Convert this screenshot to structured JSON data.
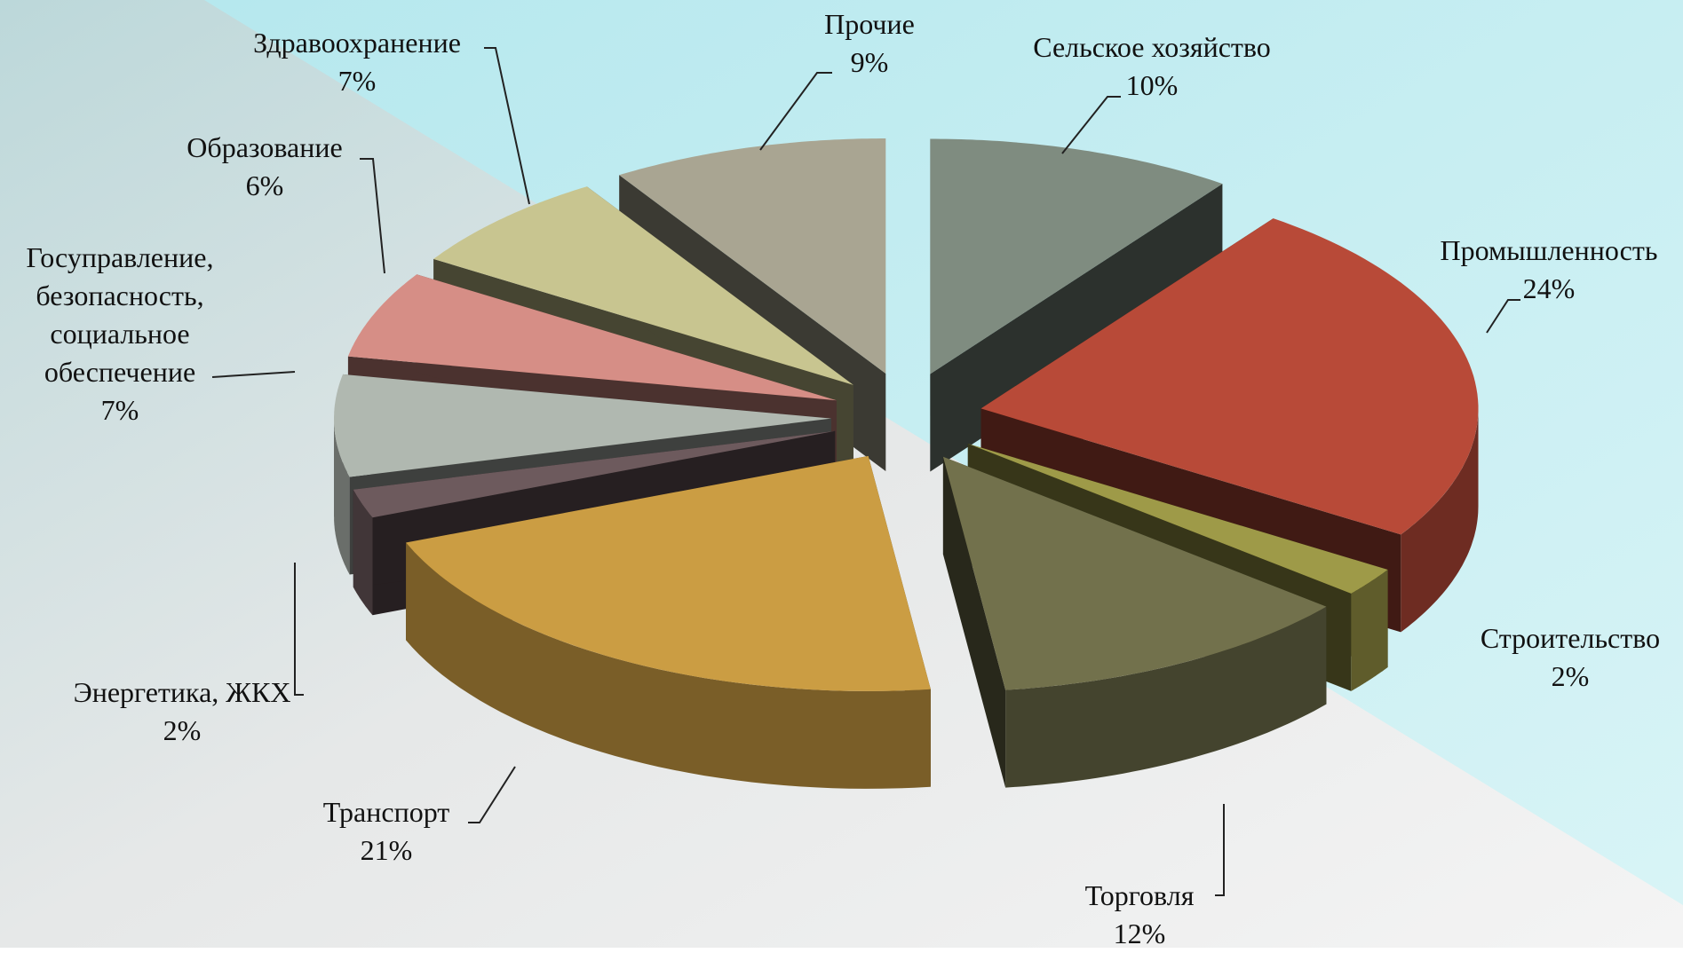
{
  "chart_data": {
    "type": "pie",
    "categories": [
      "Сельское хозяйство",
      "Промышленность",
      "Строительство",
      "Торговля",
      "Транспорт",
      "Энергетика, ЖКХ",
      "Госуправление, безопасность, социальное обеспечение",
      "Образование",
      "Здравоохранение",
      "Прочие"
    ],
    "values": [
      10,
      24,
      2,
      12,
      21,
      2,
      7,
      6,
      7,
      9
    ],
    "value_labels": [
      "10%",
      "24%",
      "2%",
      "12%",
      "21%",
      "2%",
      "7%",
      "6%",
      "7%",
      "9%"
    ],
    "colors": [
      "#7f8c80",
      "#b84a38",
      "#9e9a48",
      "#72714c",
      "#cb9d43",
      "#6d5a5d",
      "#b0b8b0",
      "#d68e86",
      "#c8c590",
      "#a9a592"
    ]
  }
}
